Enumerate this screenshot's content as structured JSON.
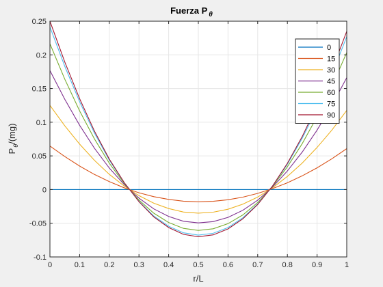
{
  "chart_data": {
    "type": "line",
    "title": "Fuerza P",
    "title_subscript": "θ",
    "xlabel": "r/L",
    "ylabel": "P",
    "ylabel_subscript": "θ",
    "ylabel_suffix": "/(mg)",
    "xlim": [
      0,
      1
    ],
    "ylim": [
      -0.1,
      0.25
    ],
    "xticks": [
      0,
      0.1,
      0.2,
      0.3,
      0.4,
      0.5,
      0.6,
      0.7,
      0.8,
      0.9,
      1
    ],
    "xtick_labels": [
      "0",
      "0.1",
      "0.2",
      "0.3",
      "0.4",
      "0.5",
      "0.6",
      "0.7",
      "0.8",
      "0.9",
      "1"
    ],
    "yticks": [
      -0.1,
      -0.05,
      0,
      0.05,
      0.1,
      0.15,
      0.2,
      0.25
    ],
    "ytick_labels": [
      "-0.1",
      "-0.05",
      "0",
      "0.05",
      "0.1",
      "0.15",
      "0.2",
      "0.25"
    ],
    "grid": true,
    "legend_position": "top-right",
    "x": [
      0,
      0.05,
      0.1,
      0.15,
      0.2,
      0.25,
      0.3,
      0.35,
      0.4,
      0.45,
      0.5,
      0.55,
      0.6,
      0.65,
      0.7,
      0.75,
      0.8,
      0.85,
      0.9,
      0.95,
      1
    ],
    "series": [
      {
        "name": "0",
        "color": "#0072bd",
        "values": [
          0,
          0,
          0,
          0,
          0,
          0,
          0,
          0,
          0,
          0,
          0,
          0,
          0,
          0,
          0,
          0,
          0,
          0,
          0,
          0,
          0
        ]
      },
      {
        "name": "15",
        "color": "#d95319",
        "values": [
          0.0647,
          0.049,
          0.0349,
          0.0225,
          0.0118,
          0.0027,
          -0.0047,
          -0.0105,
          -0.0146,
          -0.0172,
          -0.0181,
          -0.0174,
          -0.0151,
          -0.0112,
          -0.0057,
          0.0014,
          0.0101,
          0.0204,
          0.0323,
          0.0458,
          0.0608
        ]
      },
      {
        "name": "30",
        "color": "#edb120",
        "values": [
          0.125,
          0.0947,
          0.0675,
          0.0434,
          0.0227,
          0.0053,
          -0.009,
          -0.0203,
          -0.0282,
          -0.0333,
          -0.035,
          -0.0336,
          -0.0292,
          -0.0217,
          -0.0111,
          0.0027,
          0.0195,
          0.0394,
          0.0625,
          0.0884,
          0.1175
        ]
      },
      {
        "name": "45",
        "color": "#7e2f8e",
        "values": [
          0.1768,
          0.134,
          0.0955,
          0.0614,
          0.032,
          0.0075,
          -0.0127,
          -0.0287,
          -0.0399,
          -0.047,
          -0.0495,
          -0.0475,
          -0.0413,
          -0.0307,
          -0.0157,
          0.0038,
          0.0276,
          0.0557,
          0.0883,
          0.125,
          0.1662
        ]
      },
      {
        "name": "60",
        "color": "#77ac30",
        "values": [
          0.2165,
          0.164,
          0.1169,
          0.0752,
          0.0392,
          0.0092,
          -0.0156,
          -0.0351,
          -0.0489,
          -0.0576,
          -0.0606,
          -0.0582,
          -0.0506,
          -0.0376,
          -0.0192,
          0.0046,
          0.0338,
          0.0682,
          0.1082,
          0.1531,
          0.2035
        ]
      },
      {
        "name": "75",
        "color": "#4dbeee",
        "values": [
          0.2415,
          0.183,
          0.1304,
          0.0839,
          0.0438,
          0.0103,
          -0.0174,
          -0.0392,
          -0.0545,
          -0.0642,
          -0.0676,
          -0.0649,
          -0.0564,
          -0.0419,
          -0.0214,
          0.0052,
          0.0377,
          0.0761,
          0.1207,
          0.1708,
          0.227
        ]
      },
      {
        "name": "90",
        "color": "#a2142f",
        "values": [
          0.25,
          0.1894,
          0.135,
          0.0868,
          0.0453,
          0.0107,
          -0.018,
          -0.0405,
          -0.0564,
          -0.0665,
          -0.07,
          -0.0672,
          -0.0584,
          -0.0434,
          -0.0222,
          0.0053,
          0.039,
          0.0788,
          0.125,
          0.1768,
          0.235
        ]
      }
    ]
  }
}
